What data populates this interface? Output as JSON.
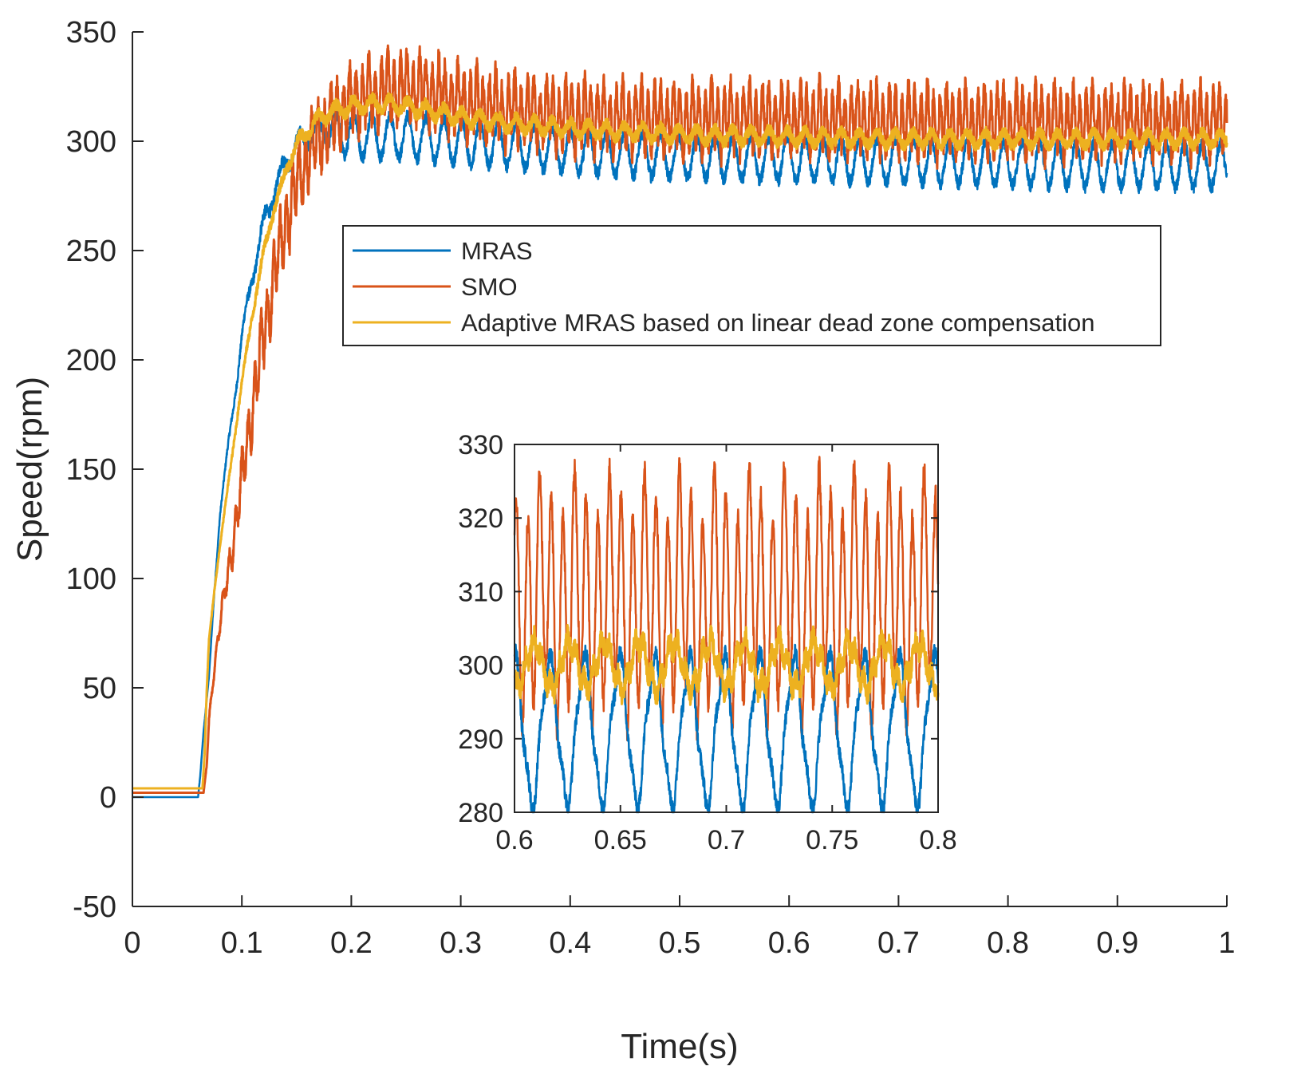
{
  "chart_data": [
    {
      "type": "line",
      "title": "",
      "xlabel": "Time(s)",
      "ylabel": "Speed(rpm)",
      "xlim": [
        0,
        1
      ],
      "ylim": [
        -50,
        350
      ],
      "x_ticks": [
        0,
        0.1,
        0.2,
        0.3,
        0.4,
        0.5,
        0.6,
        0.7,
        0.8,
        0.9,
        1
      ],
      "x_tick_labels": [
        "0",
        "0.1",
        "0.2",
        "0.3",
        "0.4",
        "0.5",
        "0.6",
        "0.7",
        "0.8",
        "0.9",
        "1"
      ],
      "y_ticks": [
        -50,
        0,
        50,
        100,
        150,
        200,
        250,
        300,
        350
      ],
      "y_tick_labels": [
        "-50",
        "0",
        "50",
        "100",
        "150",
        "200",
        "250",
        "300",
        "350"
      ],
      "grid": false,
      "legend_position": "upper-right (centered)",
      "series": [
        {
          "name": "MRAS",
          "color": "#0072BD",
          "x": [
            0,
            0.03,
            0.06,
            0.062,
            0.065,
            0.07,
            0.075,
            0.08,
            0.09,
            0.1,
            0.11,
            0.12,
            0.13,
            0.14,
            0.15,
            0.16,
            0.17,
            0.18,
            0.2,
            0.25,
            0.3,
            0.35,
            0.4,
            0.5,
            0.6,
            0.7,
            0.8,
            0.9,
            0.95,
            1
          ],
          "y": [
            0,
            0,
            0,
            10,
            30,
            55,
            95,
            130,
            170,
            210,
            240,
            262,
            278,
            290,
            298,
            303,
            306,
            305,
            303,
            302,
            300,
            298,
            296,
            293,
            292,
            291,
            290,
            289,
            289,
            289
          ]
        },
        {
          "name": "SMO",
          "color": "#D95319",
          "x": [
            0,
            0.03,
            0.06,
            0.065,
            0.068,
            0.07,
            0.075,
            0.08,
            0.09,
            0.1,
            0.11,
            0.12,
            0.13,
            0.14,
            0.15,
            0.16,
            0.17,
            0.18,
            0.19,
            0.2,
            0.22,
            0.24,
            0.26,
            0.28,
            0.3,
            0.35,
            0.4,
            0.5,
            0.6,
            0.7,
            0.8,
            0.9,
            1
          ],
          "y": [
            2,
            2,
            2,
            2,
            15,
            35,
            60,
            80,
            110,
            145,
            180,
            212,
            240,
            262,
            280,
            293,
            302,
            308,
            314,
            318,
            322,
            324,
            324,
            322,
            318,
            314,
            312,
            310,
            310,
            309,
            309,
            309,
            309
          ]
        },
        {
          "name": "Adaptive MRAS based on linear dead zone compensation",
          "color": "#EDB120",
          "x": [
            0,
            0.03,
            0.064,
            0.066,
            0.068,
            0.07,
            0.075,
            0.08,
            0.09,
            0.1,
            0.11,
            0.12,
            0.13,
            0.14,
            0.15,
            0.16,
            0.17,
            0.18,
            0.2,
            0.22,
            0.24,
            0.26,
            0.28,
            0.3,
            0.35,
            0.4,
            0.5,
            0.6,
            0.7,
            0.8,
            0.9,
            1
          ],
          "y": [
            4,
            4,
            4,
            20,
            50,
            72,
            95,
            115,
            152,
            190,
            222,
            250,
            270,
            286,
            298,
            305,
            310,
            313,
            316,
            317,
            317,
            315,
            313,
            311,
            308,
            306,
            303,
            302,
            301,
            301,
            301,
            301
          ]
        }
      ]
    },
    {
      "type": "line",
      "title": "",
      "xlim": [
        0.6,
        0.8
      ],
      "ylim": [
        280,
        330
      ],
      "x_ticks": [
        0.6,
        0.65,
        0.7,
        0.75,
        0.8
      ],
      "x_tick_labels": [
        "0.6",
        "0.65",
        "0.7",
        "0.75",
        "0.8"
      ],
      "y_ticks": [
        280,
        290,
        300,
        310,
        320,
        330
      ],
      "y_tick_labels": [
        "280",
        "290",
        "300",
        "310",
        "320",
        "330"
      ],
      "grid": false,
      "series": [
        {
          "name": "MRAS",
          "color": "#0072BD",
          "mean": 291,
          "amplitude": 9.5,
          "period": 0.0165
        },
        {
          "name": "SMO",
          "color": "#D95319",
          "mean": 309,
          "amplitude": 14,
          "period": 0.0055
        },
        {
          "name": "Adaptive MRAS based on linear dead zone compensation",
          "color": "#EDB120",
          "mean": 300,
          "amplitude": 3,
          "period": 0.0165
        }
      ]
    }
  ]
}
